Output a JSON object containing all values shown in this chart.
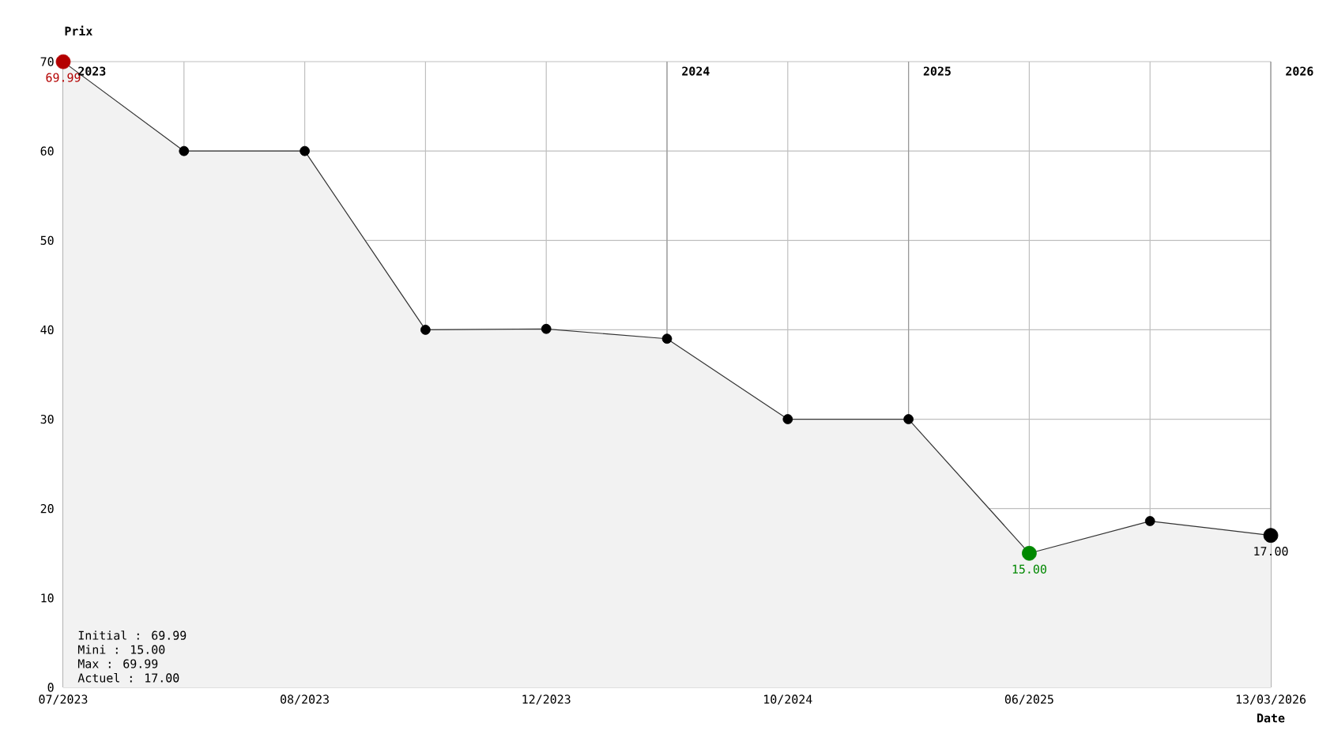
{
  "chart_data": {
    "type": "area",
    "xlabel": "Date",
    "ylabel": "Prix",
    "categories": [
      "07/2023",
      null,
      "08/2023",
      null,
      "12/2023",
      null,
      "10/2024",
      null,
      "06/2025",
      null,
      "13/03/2026"
    ],
    "ylim": [
      0,
      70
    ],
    "yticks": [
      0,
      10,
      20,
      30,
      40,
      50,
      60,
      70
    ],
    "grid": true,
    "marker": "circle",
    "series": [
      {
        "color": "#f2f2f2",
        "values": [
          69.99,
          60,
          60,
          40,
          40.1,
          39,
          30,
          30,
          15,
          18.6,
          17
        ],
        "colors": [
          "#b40000",
          "#000000",
          "#000000",
          "#000000",
          "#000000",
          "#000000",
          "#000000",
          "#000000",
          "#008800",
          "#000000",
          "#000000"
        ],
        "value_labels": [
          "69.99",
          null,
          null,
          null,
          null,
          null,
          null,
          null,
          "15.00",
          null,
          "17.00"
        ]
      }
    ],
    "annotations": [
      "2023",
      "2024",
      "2025",
      "2026",
      "Initial : 69.99",
      "Mini : 15.00",
      "Max : 69.99",
      "Actuel : 17.00"
    ]
  }
}
